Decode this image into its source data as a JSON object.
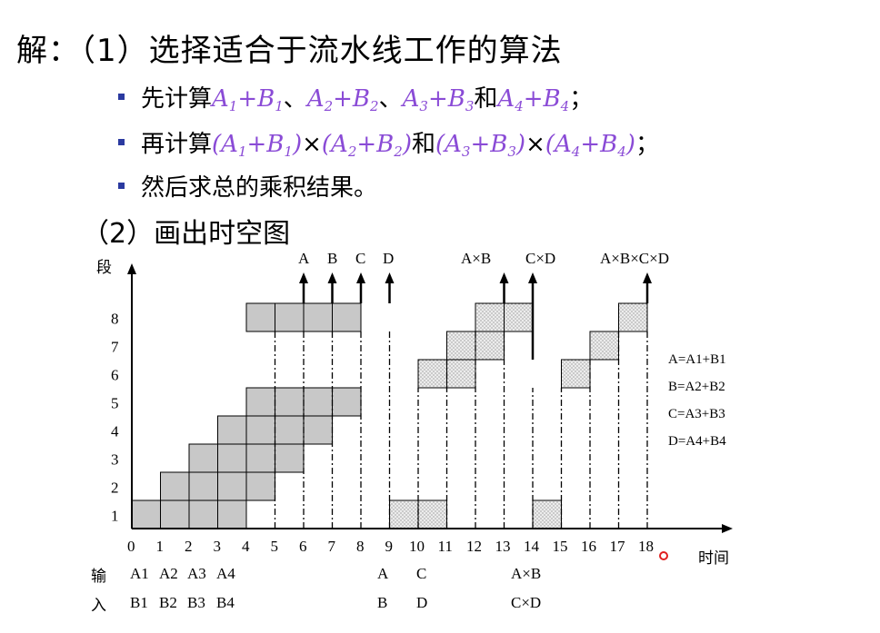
{
  "heading": {
    "prefix": "解：",
    "text": "（1）选择适合于流水线工作的算法"
  },
  "bullets": [
    {
      "lead": "先计算",
      "parts": [
        [
          "A",
          "1",
          "B",
          "1"
        ],
        [
          "A",
          "2",
          "B",
          "2"
        ],
        [
          "A",
          "3",
          "B",
          "3"
        ],
        [
          "A",
          "4",
          "B",
          "4"
        ]
      ],
      "seps": [
        "、",
        "、",
        "和"
      ],
      "tail": "；"
    },
    {
      "lead": "再计算",
      "text": "(A1+B1)×(A2+B2)和(A3+B3)×(A4+B4)；"
    },
    {
      "lead": "然后求总的乘积结果。"
    }
  ],
  "subheading": "（2）画出时空图",
  "chart": {
    "y_axis_label": "段",
    "x_axis_label": "时间",
    "y_ticks": [
      "1",
      "2",
      "3",
      "4",
      "5",
      "6",
      "7",
      "8"
    ],
    "x_ticks": [
      "0",
      "1",
      "2",
      "3",
      "4",
      "5",
      "6",
      "7",
      "8",
      "9",
      "10",
      "11",
      "12",
      "13",
      "14",
      "15",
      "16",
      "17",
      "18"
    ],
    "outputs": [
      "A",
      "B",
      "C",
      "D",
      "A×B",
      "C×D",
      "A×B×C×D"
    ],
    "legend": [
      "A=A1+B1",
      "B=A2+B2",
      "C=A3+B3",
      "D=A4+B4"
    ],
    "input_row_labels": [
      "输",
      "入"
    ],
    "inputs_top": [
      "A1",
      "A2",
      "A3",
      "A4",
      "A",
      "C",
      "A×B"
    ],
    "inputs_bottom": [
      "B1",
      "B2",
      "B3",
      "B4",
      "B",
      "D",
      "C×D"
    ],
    "adds": [
      {
        "stage": 1,
        "start": 0
      },
      {
        "stage": 1,
        "start": 1
      },
      {
        "stage": 1,
        "start": 2
      },
      {
        "stage": 1,
        "start": 3
      }
    ],
    "colors": {
      "solid_fill": "#c8c8c8",
      "dotted_fill": "#ececec",
      "marker": "#e02020"
    }
  }
}
